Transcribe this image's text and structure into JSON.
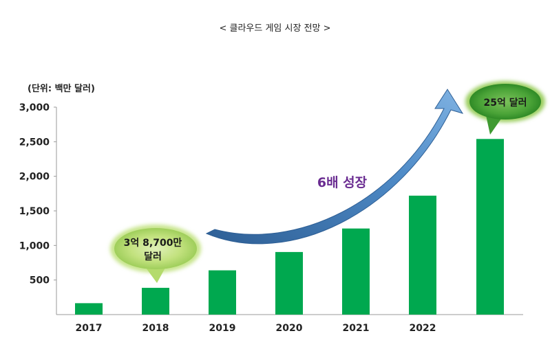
{
  "page": {
    "title": "< 클라우드 게임 시장 전망 >"
  },
  "chart_data": {
    "type": "bar",
    "unit_label": "(단위: 백만 달러)",
    "categories": [
      "2017",
      "2018",
      "2019",
      "2020",
      "2021",
      "2022",
      ""
    ],
    "values": [
      165,
      387,
      640,
      905,
      1245,
      1720,
      2540
    ],
    "ylim": [
      0,
      3000
    ],
    "yticks": [
      "3,000",
      "2,500",
      "2,000",
      "1,500",
      "1,000",
      "500"
    ],
    "ytick_values": [
      3000,
      2500,
      2000,
      1500,
      1000,
      500
    ],
    "bar_color": "#00a84f",
    "grid": false,
    "annotations": {
      "start_label": [
        "3억 8,700만",
        "달러"
      ],
      "end_label": "25억 달러",
      "growth_label": "6배 성장"
    }
  }
}
